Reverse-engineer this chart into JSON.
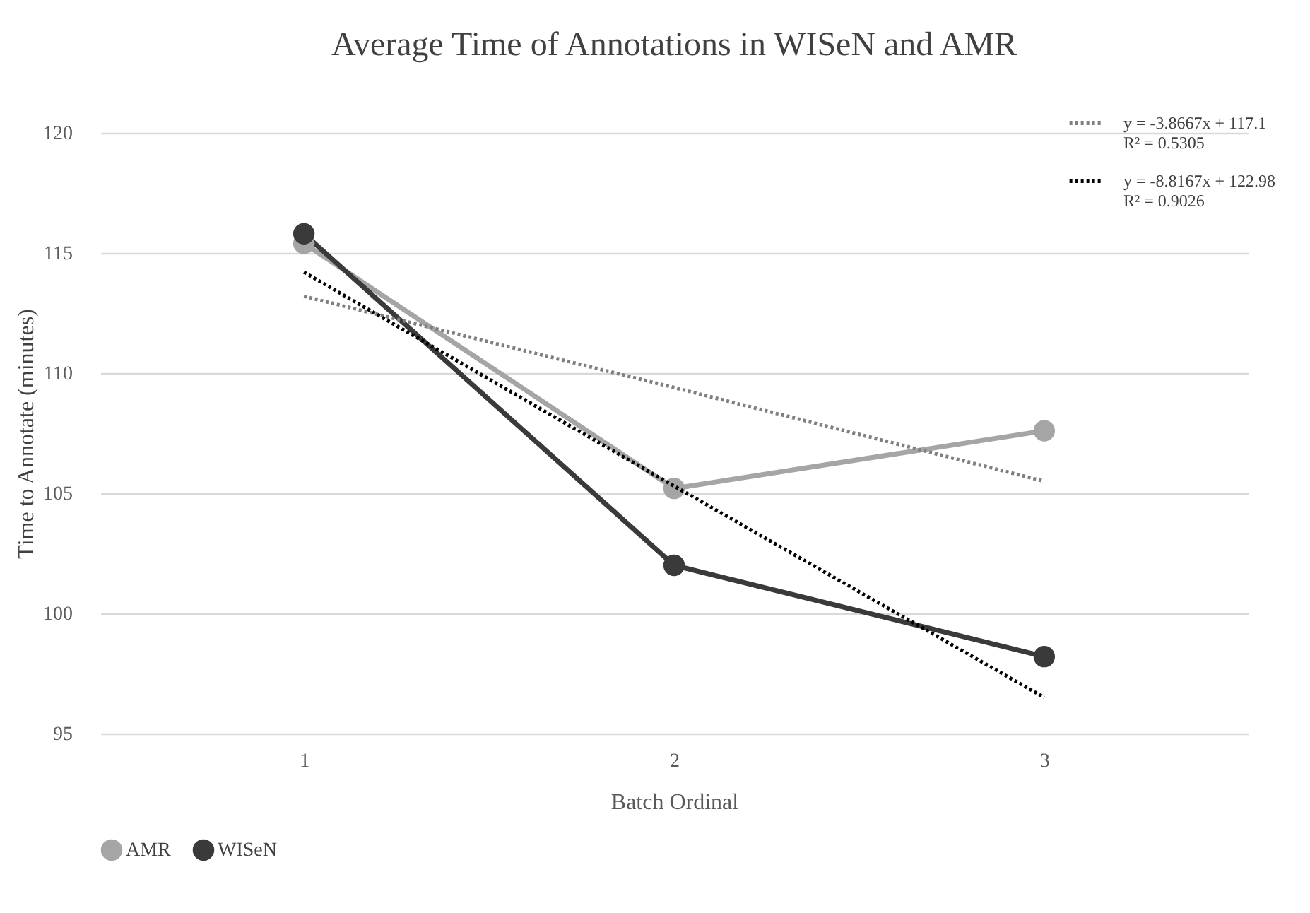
{
  "chart_data": {
    "type": "line",
    "title": "Average Time of Annotations in WISeN and AMR",
    "xlabel": "Batch Ordinal",
    "ylabel": "Time to Annotate (minutes)",
    "categories": [
      "1",
      "2",
      "3"
    ],
    "series": [
      {
        "name": "AMR",
        "color": "#a5a5a5",
        "values": [
          115.4,
          105.2,
          107.6
        ]
      },
      {
        "name": "WISeN",
        "color": "#3a3a3a",
        "values": [
          115.8,
          102.0,
          98.2
        ]
      },
      {
        "name": "y = -3.8667x + 117.1\nR² = 0.5305",
        "color": "#7f7f7f",
        "values": [
          113.2,
          109.4,
          105.5
        ],
        "line_style": "dotted",
        "marker": "none"
      },
      {
        "name": "y = -8.8167x + 122.98\nR² = 0.9026",
        "color": "#000000",
        "values": [
          114.2,
          105.3,
          96.5
        ],
        "line_style": "dotted",
        "marker": "none"
      }
    ],
    "ylim": [
      95,
      120
    ],
    "yticks": [
      95,
      100,
      105,
      110,
      115,
      120
    ],
    "grid": "y",
    "legend": "bottom",
    "marker": "circle",
    "line_style": "solid"
  }
}
